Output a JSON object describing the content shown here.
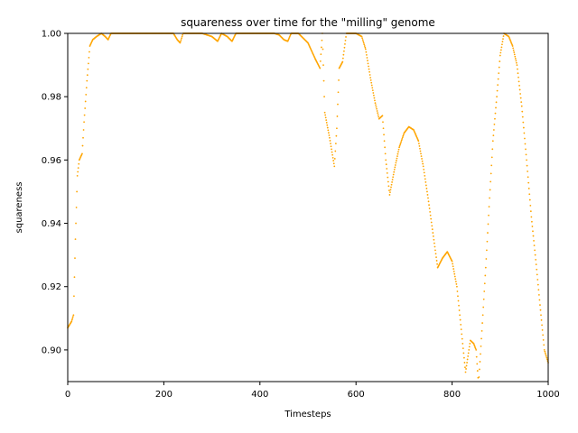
{
  "chart_data": {
    "type": "scatter",
    "title": "squareness over time for the \"milling\" genome",
    "xlabel": "Timesteps",
    "ylabel": "squareness",
    "xlim": [
      0,
      1000
    ],
    "ylim": [
      0.89,
      1.0
    ],
    "xticks": [
      0,
      200,
      400,
      600,
      800,
      1000
    ],
    "yticks": [
      0.9,
      0.92,
      0.94,
      0.96,
      0.98,
      1.0
    ],
    "xtick_labels": [
      "0",
      "200",
      "400",
      "600",
      "800",
      "1000"
    ],
    "ytick_labels": [
      "0.90",
      "0.92",
      "0.94",
      "0.96",
      "0.98",
      "1.00"
    ],
    "grid": false,
    "marker_color": "#FFA500",
    "series": [
      {
        "control_points": [
          [
            0,
            0.907
          ],
          [
            8,
            0.909
          ],
          [
            12,
            0.911
          ],
          [
            16,
            0.935
          ],
          [
            20,
            0.955
          ],
          [
            24,
            0.96
          ],
          [
            30,
            0.962
          ],
          [
            34,
            0.972
          ],
          [
            40,
            0.985
          ],
          [
            46,
            0.996
          ],
          [
            52,
            0.998
          ],
          [
            60,
            0.999
          ],
          [
            70,
            1.0
          ],
          [
            78,
            0.999
          ],
          [
            84,
            0.998
          ],
          [
            90,
            1.0
          ],
          [
            120,
            1.0
          ],
          [
            150,
            1.0
          ],
          [
            200,
            1.0
          ],
          [
            220,
            1.0
          ],
          [
            228,
            0.998
          ],
          [
            234,
            0.997
          ],
          [
            240,
            1.0
          ],
          [
            280,
            1.0
          ],
          [
            300,
            0.999
          ],
          [
            312,
            0.9975
          ],
          [
            320,
            1.0
          ],
          [
            332,
            0.999
          ],
          [
            342,
            0.9975
          ],
          [
            350,
            1.0
          ],
          [
            400,
            1.0
          ],
          [
            430,
            1.0
          ],
          [
            440,
            0.9995
          ],
          [
            450,
            0.998
          ],
          [
            458,
            0.9975
          ],
          [
            465,
            1.0
          ],
          [
            480,
            1.0
          ],
          [
            500,
            0.997
          ],
          [
            515,
            0.992
          ],
          [
            525,
            0.989
          ],
          [
            530,
            1.0
          ],
          [
            535,
            0.975
          ],
          [
            545,
            0.967
          ],
          [
            555,
            0.958
          ],
          [
            560,
            0.97
          ],
          [
            565,
            0.989
          ],
          [
            572,
            0.991
          ],
          [
            580,
            1.0
          ],
          [
            600,
            1.0
          ],
          [
            612,
            0.999
          ],
          [
            620,
            0.995
          ],
          [
            630,
            0.986
          ],
          [
            640,
            0.978
          ],
          [
            648,
            0.973
          ],
          [
            655,
            0.974
          ],
          [
            662,
            0.96
          ],
          [
            670,
            0.949
          ],
          [
            680,
            0.957
          ],
          [
            690,
            0.964
          ],
          [
            700,
            0.9685
          ],
          [
            710,
            0.9705
          ],
          [
            720,
            0.9695
          ],
          [
            730,
            0.966
          ],
          [
            740,
            0.958
          ],
          [
            750,
            0.948
          ],
          [
            760,
            0.937
          ],
          [
            770,
            0.926
          ],
          [
            780,
            0.929
          ],
          [
            790,
            0.931
          ],
          [
            800,
            0.928
          ],
          [
            810,
            0.92
          ],
          [
            820,
            0.905
          ],
          [
            828,
            0.893
          ],
          [
            838,
            0.903
          ],
          [
            845,
            0.902
          ],
          [
            850,
            0.9
          ],
          [
            855,
            0.889
          ],
          [
            862,
            0.906
          ],
          [
            870,
            0.926
          ],
          [
            878,
            0.948
          ],
          [
            885,
            0.966
          ],
          [
            893,
            0.98
          ],
          [
            900,
            0.993
          ],
          [
            908,
            1.0
          ],
          [
            918,
            0.999
          ],
          [
            926,
            0.996
          ],
          [
            935,
            0.99
          ],
          [
            945,
            0.977
          ],
          [
            955,
            0.96
          ],
          [
            965,
            0.942
          ],
          [
            975,
            0.927
          ],
          [
            985,
            0.911
          ],
          [
            992,
            0.9
          ],
          [
            1000,
            0.896
          ]
        ]
      }
    ]
  }
}
